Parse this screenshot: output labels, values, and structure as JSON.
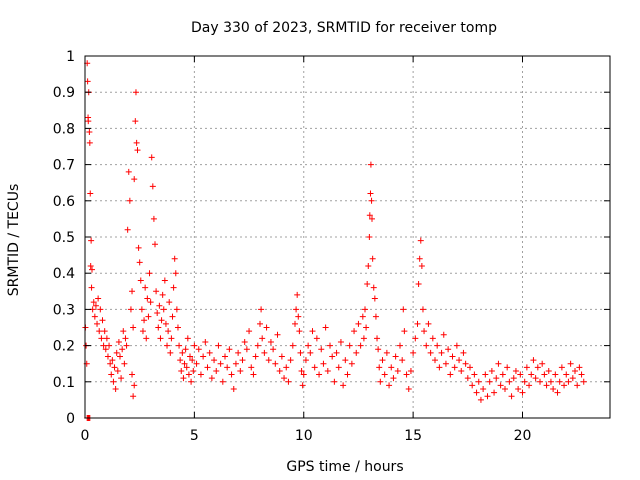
{
  "chart_data": {
    "type": "scatter",
    "title": "Day 330 of 2023, SRMTID for receiver tomp",
    "xlabel": "GPS time / hours",
    "ylabel": "SRMTID / TECUs",
    "xlim": [
      0,
      24
    ],
    "ylim": [
      0,
      1
    ],
    "grid": true,
    "x_ticks": [
      0,
      5,
      10,
      15,
      20
    ],
    "x_tick_labels": [
      "0",
      "5",
      "10",
      "15",
      "20"
    ],
    "y_ticks": [
      0,
      0.1,
      0.2,
      0.3,
      0.4,
      0.5,
      0.6,
      0.7,
      0.8,
      0.9,
      1
    ],
    "y_tick_labels": [
      "0",
      "0.1",
      "0.2",
      "0.3",
      "0.4",
      "0.5",
      "0.6",
      "0.7",
      "0.8",
      "0.9",
      "1"
    ],
    "marker": "+",
    "color": "#ff0000",
    "series": [
      {
        "name": "SRMTID",
        "points": [
          [
            0.02,
            0.25
          ],
          [
            0.05,
            0.2
          ],
          [
            0.08,
            0.15
          ],
          [
            0.1,
            0.98
          ],
          [
            0.12,
            0.93
          ],
          [
            0.14,
            0.83
          ],
          [
            0.15,
            0.82
          ],
          [
            0.17,
            0.9
          ],
          [
            0.2,
            0.79
          ],
          [
            0.22,
            0.76
          ],
          [
            0.24,
            0.62
          ],
          [
            0.26,
            0.42
          ],
          [
            0.28,
            0.49
          ],
          [
            0.3,
            0.36
          ],
          [
            0.32,
            0.41
          ],
          [
            0.1,
            0.0
          ],
          [
            0.14,
            0.0
          ],
          [
            0.18,
            0.0
          ],
          [
            0.22,
            0.0
          ],
          [
            0.35,
            0.3
          ],
          [
            0.4,
            0.32
          ],
          [
            0.45,
            0.28
          ],
          [
            0.5,
            0.31
          ],
          [
            0.55,
            0.26
          ],
          [
            0.6,
            0.33
          ],
          [
            0.65,
            0.24
          ],
          [
            0.7,
            0.3
          ],
          [
            0.75,
            0.22
          ],
          [
            0.8,
            0.27
          ],
          [
            0.85,
            0.2
          ],
          [
            0.9,
            0.24
          ],
          [
            0.95,
            0.19
          ],
          [
            1.0,
            0.22
          ],
          [
            1.05,
            0.17
          ],
          [
            1.1,
            0.2
          ],
          [
            1.15,
            0.15
          ],
          [
            1.2,
            0.12
          ],
          [
            1.25,
            0.16
          ],
          [
            1.3,
            0.1
          ],
          [
            1.35,
            0.14
          ],
          [
            1.4,
            0.08
          ],
          [
            1.45,
            0.18
          ],
          [
            1.5,
            0.13
          ],
          [
            1.55,
            0.21
          ],
          [
            1.6,
            0.17
          ],
          [
            1.65,
            0.11
          ],
          [
            1.7,
            0.19
          ],
          [
            1.75,
            0.24
          ],
          [
            1.8,
            0.15
          ],
          [
            1.85,
            0.22
          ],
          [
            1.9,
            0.2
          ],
          [
            1.95,
            0.52
          ],
          [
            2.0,
            0.68
          ],
          [
            2.05,
            0.6
          ],
          [
            2.1,
            0.3
          ],
          [
            2.15,
            0.35
          ],
          [
            2.2,
            0.25
          ],
          [
            2.25,
            0.66
          ],
          [
            2.3,
            0.82
          ],
          [
            2.33,
            0.9
          ],
          [
            2.36,
            0.76
          ],
          [
            2.4,
            0.74
          ],
          [
            2.45,
            0.47
          ],
          [
            2.5,
            0.43
          ],
          [
            2.55,
            0.38
          ],
          [
            2.2,
            0.06
          ],
          [
            2.25,
            0.09
          ],
          [
            2.15,
            0.12
          ],
          [
            2.6,
            0.3
          ],
          [
            2.65,
            0.24
          ],
          [
            2.7,
            0.27
          ],
          [
            2.75,
            0.36
          ],
          [
            2.8,
            0.22
          ],
          [
            2.85,
            0.33
          ],
          [
            2.9,
            0.28
          ],
          [
            2.95,
            0.4
          ],
          [
            3.0,
            0.32
          ],
          [
            3.05,
            0.72
          ],
          [
            3.1,
            0.64
          ],
          [
            3.15,
            0.55
          ],
          [
            3.2,
            0.48
          ],
          [
            3.25,
            0.35
          ],
          [
            3.3,
            0.29
          ],
          [
            3.35,
            0.25
          ],
          [
            3.4,
            0.31
          ],
          [
            3.45,
            0.22
          ],
          [
            3.5,
            0.27
          ],
          [
            3.55,
            0.34
          ],
          [
            3.6,
            0.3
          ],
          [
            3.65,
            0.38
          ],
          [
            3.7,
            0.26
          ],
          [
            3.75,
            0.2
          ],
          [
            3.8,
            0.24
          ],
          [
            3.85,
            0.32
          ],
          [
            3.9,
            0.18
          ],
          [
            3.95,
            0.22
          ],
          [
            4.0,
            0.28
          ],
          [
            4.05,
            0.36
          ],
          [
            4.1,
            0.44
          ],
          [
            4.15,
            0.4
          ],
          [
            4.2,
            0.3
          ],
          [
            4.25,
            0.25
          ],
          [
            4.3,
            0.2
          ],
          [
            4.35,
            0.16
          ],
          [
            4.4,
            0.13
          ],
          [
            4.45,
            0.18
          ],
          [
            4.5,
            0.11
          ],
          [
            4.55,
            0.15
          ],
          [
            4.6,
            0.19
          ],
          [
            4.65,
            0.14
          ],
          [
            4.7,
            0.22
          ],
          [
            4.75,
            0.12
          ],
          [
            4.8,
            0.17
          ],
          [
            4.85,
            0.1
          ],
          [
            4.9,
            0.16
          ],
          [
            4.95,
            0.13
          ],
          [
            5.0,
            0.2
          ],
          [
            5.1,
            0.15
          ],
          [
            5.2,
            0.19
          ],
          [
            5.3,
            0.12
          ],
          [
            5.4,
            0.17
          ],
          [
            5.5,
            0.21
          ],
          [
            5.6,
            0.14
          ],
          [
            5.7,
            0.18
          ],
          [
            5.8,
            0.11
          ],
          [
            5.9,
            0.16
          ],
          [
            6.0,
            0.13
          ],
          [
            6.1,
            0.2
          ],
          [
            6.2,
            0.15
          ],
          [
            6.3,
            0.1
          ],
          [
            6.4,
            0.17
          ],
          [
            6.5,
            0.14
          ],
          [
            6.6,
            0.19
          ],
          [
            6.7,
            0.12
          ],
          [
            6.8,
            0.08
          ],
          [
            6.9,
            0.15
          ],
          [
            7.0,
            0.18
          ],
          [
            7.1,
            0.13
          ],
          [
            7.2,
            0.16
          ],
          [
            7.3,
            0.21
          ],
          [
            7.4,
            0.19
          ],
          [
            7.5,
            0.24
          ],
          [
            7.6,
            0.14
          ],
          [
            7.7,
            0.12
          ],
          [
            7.8,
            0.17
          ],
          [
            7.9,
            0.2
          ],
          [
            8.0,
            0.26
          ],
          [
            8.05,
            0.3
          ],
          [
            8.1,
            0.22
          ],
          [
            8.2,
            0.18
          ],
          [
            8.3,
            0.25
          ],
          [
            8.4,
            0.16
          ],
          [
            8.5,
            0.21
          ],
          [
            8.6,
            0.19
          ],
          [
            8.7,
            0.15
          ],
          [
            8.8,
            0.23
          ],
          [
            8.9,
            0.13
          ],
          [
            9.0,
            0.17
          ],
          [
            9.1,
            0.11
          ],
          [
            9.2,
            0.14
          ],
          [
            9.3,
            0.1
          ],
          [
            9.4,
            0.16
          ],
          [
            9.5,
            0.2
          ],
          [
            9.6,
            0.26
          ],
          [
            9.65,
            0.3
          ],
          [
            9.7,
            0.34
          ],
          [
            9.75,
            0.28
          ],
          [
            9.8,
            0.24
          ],
          [
            9.85,
            0.18
          ],
          [
            9.9,
            0.13
          ],
          [
            9.95,
            0.09
          ],
          [
            10.0,
            0.12
          ],
          [
            10.1,
            0.16
          ],
          [
            10.2,
            0.2
          ],
          [
            10.3,
            0.18
          ],
          [
            10.4,
            0.24
          ],
          [
            10.5,
            0.14
          ],
          [
            10.6,
            0.22
          ],
          [
            10.7,
            0.12
          ],
          [
            10.8,
            0.19
          ],
          [
            10.9,
            0.15
          ],
          [
            11.0,
            0.25
          ],
          [
            11.1,
            0.13
          ],
          [
            11.2,
            0.2
          ],
          [
            11.3,
            0.17
          ],
          [
            11.4,
            0.1
          ],
          [
            11.5,
            0.18
          ],
          [
            11.6,
            0.14
          ],
          [
            11.7,
            0.21
          ],
          [
            11.8,
            0.09
          ],
          [
            11.9,
            0.16
          ],
          [
            12.0,
            0.12
          ],
          [
            12.1,
            0.2
          ],
          [
            12.2,
            0.15
          ],
          [
            12.3,
            0.24
          ],
          [
            12.4,
            0.18
          ],
          [
            12.5,
            0.26
          ],
          [
            12.6,
            0.2
          ],
          [
            12.7,
            0.28
          ],
          [
            12.75,
            0.22
          ],
          [
            12.8,
            0.3
          ],
          [
            12.85,
            0.25
          ],
          [
            12.9,
            0.37
          ],
          [
            12.95,
            0.42
          ],
          [
            13.0,
            0.5
          ],
          [
            13.02,
            0.56
          ],
          [
            13.05,
            0.62
          ],
          [
            13.07,
            0.7
          ],
          [
            13.1,
            0.6
          ],
          [
            13.12,
            0.55
          ],
          [
            13.15,
            0.44
          ],
          [
            13.2,
            0.36
          ],
          [
            13.25,
            0.33
          ],
          [
            13.3,
            0.28
          ],
          [
            13.35,
            0.22
          ],
          [
            13.4,
            0.19
          ],
          [
            13.45,
            0.14
          ],
          [
            13.5,
            0.1
          ],
          [
            13.6,
            0.16
          ],
          [
            13.7,
            0.12
          ],
          [
            13.8,
            0.18
          ],
          [
            13.9,
            0.09
          ],
          [
            14.0,
            0.14
          ],
          [
            14.1,
            0.11
          ],
          [
            14.2,
            0.17
          ],
          [
            14.3,
            0.13
          ],
          [
            14.4,
            0.2
          ],
          [
            14.5,
            0.16
          ],
          [
            14.55,
            0.3
          ],
          [
            14.6,
            0.24
          ],
          [
            14.7,
            0.12
          ],
          [
            14.8,
            0.08
          ],
          [
            14.9,
            0.13
          ],
          [
            15.0,
            0.18
          ],
          [
            15.1,
            0.22
          ],
          [
            15.2,
            0.26
          ],
          [
            15.25,
            0.37
          ],
          [
            15.3,
            0.44
          ],
          [
            15.35,
            0.49
          ],
          [
            15.4,
            0.42
          ],
          [
            15.45,
            0.3
          ],
          [
            15.5,
            0.24
          ],
          [
            15.6,
            0.2
          ],
          [
            15.7,
            0.26
          ],
          [
            15.8,
            0.18
          ],
          [
            15.9,
            0.22
          ],
          [
            16.0,
            0.16
          ],
          [
            16.1,
            0.2
          ],
          [
            16.2,
            0.14
          ],
          [
            16.3,
            0.18
          ],
          [
            16.4,
            0.23
          ],
          [
            16.5,
            0.15
          ],
          [
            16.6,
            0.19
          ],
          [
            16.7,
            0.12
          ],
          [
            16.8,
            0.17
          ],
          [
            16.9,
            0.14
          ],
          [
            17.0,
            0.2
          ],
          [
            17.1,
            0.16
          ],
          [
            17.2,
            0.13
          ],
          [
            17.3,
            0.18
          ],
          [
            17.4,
            0.15
          ],
          [
            17.5,
            0.11
          ],
          [
            17.6,
            0.14
          ],
          [
            17.7,
            0.09
          ],
          [
            17.8,
            0.12
          ],
          [
            17.9,
            0.07
          ],
          [
            18.0,
            0.1
          ],
          [
            18.1,
            0.05
          ],
          [
            18.2,
            0.08
          ],
          [
            18.3,
            0.12
          ],
          [
            18.4,
            0.06
          ],
          [
            18.5,
            0.1
          ],
          [
            18.6,
            0.13
          ],
          [
            18.7,
            0.07
          ],
          [
            18.8,
            0.11
          ],
          [
            18.9,
            0.15
          ],
          [
            19.0,
            0.09
          ],
          [
            19.1,
            0.12
          ],
          [
            19.2,
            0.08
          ],
          [
            19.3,
            0.14
          ],
          [
            19.4,
            0.1
          ],
          [
            19.5,
            0.06
          ],
          [
            19.6,
            0.11
          ],
          [
            19.7,
            0.13
          ],
          [
            19.8,
            0.08
          ],
          [
            19.9,
            0.12
          ],
          [
            20.0,
            0.07
          ],
          [
            20.1,
            0.1
          ],
          [
            20.2,
            0.14
          ],
          [
            20.3,
            0.09
          ],
          [
            20.4,
            0.12
          ],
          [
            20.5,
            0.16
          ],
          [
            20.6,
            0.11
          ],
          [
            20.7,
            0.14
          ],
          [
            20.8,
            0.1
          ],
          [
            20.9,
            0.15
          ],
          [
            21.0,
            0.12
          ],
          [
            21.1,
            0.09
          ],
          [
            21.2,
            0.13
          ],
          [
            21.3,
            0.1
          ],
          [
            21.4,
            0.08
          ],
          [
            21.5,
            0.12
          ],
          [
            21.6,
            0.07
          ],
          [
            21.7,
            0.1
          ],
          [
            21.8,
            0.14
          ],
          [
            21.9,
            0.09
          ],
          [
            22.0,
            0.12
          ],
          [
            22.1,
            0.1
          ],
          [
            22.2,
            0.15
          ],
          [
            22.3,
            0.11
          ],
          [
            22.4,
            0.13
          ],
          [
            22.5,
            0.09
          ],
          [
            22.6,
            0.14
          ],
          [
            22.7,
            0.12
          ],
          [
            22.8,
            0.1
          ]
        ]
      }
    ]
  }
}
